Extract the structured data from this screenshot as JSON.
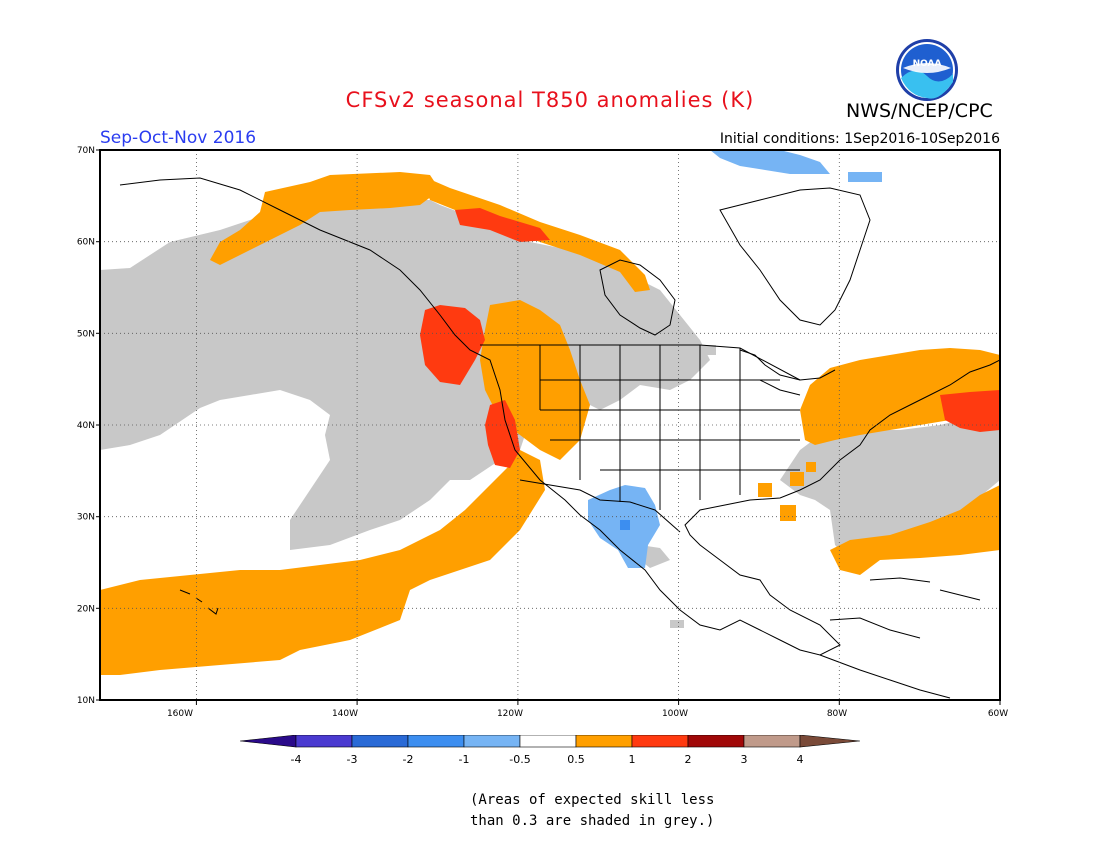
{
  "header": {
    "title": "CFSv2 seasonal T850 anomalies (K)",
    "organization": "NWS/NCEP/CPC",
    "logo_text": "NOAA",
    "season": "Sep-Oct-Nov 2016",
    "initial_conditions": "Initial conditions: 1Sep2016-10Sep2016"
  },
  "map": {
    "lat_labels": [
      "70N",
      "60N",
      "50N",
      "40N",
      "30N",
      "20N",
      "10N"
    ],
    "lon_labels": [
      "160W",
      "140W",
      "120W",
      "100W",
      "80W",
      "60W"
    ],
    "lat_range": [
      10,
      70
    ],
    "lon_range": [
      -172,
      -60
    ],
    "regions": {
      "grey_low_skill": "Areas of expected skill less than 0.3",
      "orange": "0.5 to 1",
      "red": "1 to 2",
      "lightblue": "-1 to -0.5"
    }
  },
  "colorbar": {
    "ticks": [
      "-4",
      "-3",
      "-2",
      "-1",
      "-0.5",
      "0.5",
      "1",
      "2",
      "3",
      "4"
    ],
    "colors": [
      "#2a0a8a",
      "#4a3ad0",
      "#2a6ad6",
      "#3c8ef0",
      "#76b4f4",
      "#ffffff",
      "#ff9f00",
      "#ff3a10",
      "#a00808",
      "#c09a8a",
      "#7a4a38"
    ]
  },
  "note": {
    "line1": "(Areas of expected skill less",
    "line2": "than 0.3 are shaded in grey.)"
  },
  "colors": {
    "grey": "#c8c8c8",
    "orange": "#ff9f00",
    "red": "#ff3a10",
    "lightblue": "#76b4f4",
    "darkblue": "#3c8ef0",
    "title": "#e8101c",
    "season": "#2a3cf0"
  }
}
